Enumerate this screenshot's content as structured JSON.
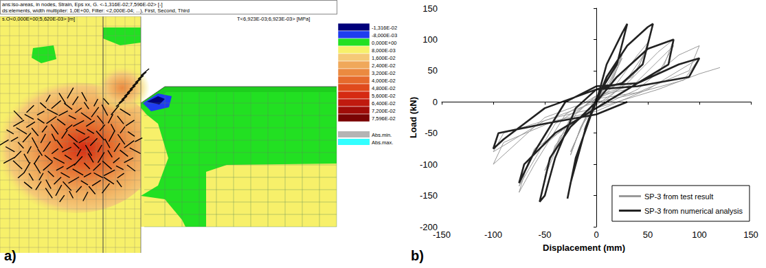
{
  "figure": {
    "label": "a)",
    "header": [
      "ans:iso-areas, in nodes, Strain, Eps xx, G. <-1,316E-02;7,596E-02> [-]",
      "ds:elements, width multiplier: 1,0E+00, Filter: <2,000E-04; ...), First, Second, Third"
    ],
    "header_left": "s.O<0,000E+00;5,620E-03> [m]",
    "header_right": "T<6,923E-03;6,923E-03> [MPa]",
    "color_legend": [
      {
        "label": "-1,316E-02",
        "color": "#00007a"
      },
      {
        "label": "-8,000E-03",
        "color": "#1f3cf0"
      },
      {
        "label": "0,000E+00",
        "color": "#22e022"
      },
      {
        "label": "8,000E-03",
        "color": "#f7f06a"
      },
      {
        "label": "1,600E-02",
        "color": "#f5c977"
      },
      {
        "label": "2,400E-02",
        "color": "#f0a85a"
      },
      {
        "label": "3,200E-02",
        "color": "#eb8a40"
      },
      {
        "label": "4,000E-02",
        "color": "#e66a2c"
      },
      {
        "label": "4,800E-02",
        "color": "#e04a1c"
      },
      {
        "label": "5,600E-02",
        "color": "#d52a12"
      },
      {
        "label": "6,400E-02",
        "color": "#c01a0e"
      },
      {
        "label": "7,200E-02",
        "color": "#a00c08"
      },
      {
        "label": "7,596E-02",
        "color": "#7a0404"
      }
    ],
    "extremes": [
      {
        "label": "Abs.min.",
        "color": "#b4b4b4"
      },
      {
        "label": "Abs.max.",
        "color": "#33ffff"
      }
    ]
  },
  "chart_data": {
    "type": "line",
    "panel_label": "b)",
    "xlabel": "Displacement (mm)",
    "ylabel": "Load (kN)",
    "xlim": [
      -150,
      150
    ],
    "xticks": [
      -150,
      -100,
      -50,
      0,
      50,
      100,
      150
    ],
    "ylim": [
      -200,
      150
    ],
    "yticks": [
      -200,
      -150,
      -100,
      -50,
      0,
      50,
      100,
      150
    ],
    "grid": false,
    "legend": "lower right",
    "series": [
      {
        "name": "SP-3 from test result",
        "color": "#999999",
        "line_style": "solid",
        "marker": "none",
        "x": [
          0,
          10,
          0,
          -10,
          0,
          12,
          0,
          -12,
          0,
          15,
          25,
          15,
          0,
          -15,
          -25,
          -15,
          0,
          15,
          25,
          10,
          -10,
          -25,
          -10,
          0,
          20,
          40,
          50,
          40,
          20,
          0,
          -20,
          -40,
          -50,
          -40,
          -20,
          0,
          25,
          50,
          35,
          0,
          -25,
          -50,
          -35,
          0,
          30,
          60,
          75,
          65,
          30,
          0,
          -30,
          -60,
          -75,
          -65,
          -30,
          0,
          35,
          75,
          60,
          0,
          -40,
          -75,
          -60,
          0,
          40,
          80,
          100,
          90,
          40,
          0,
          -50,
          -90,
          -100,
          -90,
          -40,
          0,
          50,
          90,
          100,
          85,
          30,
          0,
          -50,
          -100,
          -90,
          -40,
          0,
          60,
          100,
          120
        ],
        "values": [
          0,
          40,
          5,
          -40,
          -5,
          45,
          5,
          -45,
          0,
          40,
          75,
          30,
          10,
          -40,
          -85,
          -40,
          -5,
          35,
          70,
          20,
          -25,
          -80,
          -25,
          0,
          30,
          75,
          95,
          50,
          20,
          10,
          -20,
          -80,
          -120,
          -70,
          -30,
          -10,
          25,
          85,
          40,
          10,
          -25,
          -110,
          -55,
          -5,
          30,
          80,
          100,
          55,
          20,
          10,
          -20,
          -100,
          -145,
          -90,
          -40,
          -10,
          25,
          90,
          45,
          5,
          -35,
          -135,
          -75,
          -10,
          20,
          75,
          90,
          50,
          15,
          5,
          -25,
          -85,
          -100,
          -65,
          -30,
          -15,
          20,
          60,
          70,
          35,
          10,
          0,
          -30,
          -80,
          -50,
          -25,
          -10,
          20,
          45,
          55
        ]
      },
      {
        "name": "SP-3 from numerical analysis",
        "color": "#222222",
        "line_style": "solid",
        "marker": "none",
        "x": [
          0,
          10,
          25,
          30,
          20,
          5,
          0,
          -10,
          -25,
          -28,
          -20,
          -5,
          0,
          10,
          30,
          50,
          55,
          45,
          25,
          0,
          -20,
          -40,
          -50,
          -55,
          -45,
          -25,
          0,
          20,
          50,
          75,
          70,
          40,
          0,
          -30,
          -60,
          -75,
          -70,
          -40,
          0,
          40,
          80,
          100,
          90,
          40,
          0,
          -50,
          -90,
          -100,
          -95,
          -50,
          0,
          30
        ],
        "values": [
          0,
          60,
          110,
          125,
          60,
          20,
          5,
          -40,
          -130,
          -155,
          -90,
          -20,
          0,
          40,
          90,
          120,
          125,
          60,
          30,
          20,
          -10,
          -90,
          -150,
          -160,
          -90,
          -40,
          0,
          40,
          85,
          100,
          60,
          30,
          25,
          0,
          -80,
          -130,
          -100,
          -50,
          -10,
          30,
          60,
          70,
          40,
          25,
          20,
          -10,
          -60,
          -75,
          -50,
          -35,
          -20,
          0
        ]
      }
    ]
  }
}
